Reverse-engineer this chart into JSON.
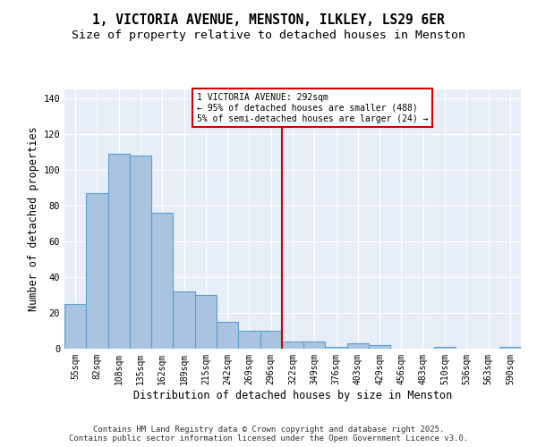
{
  "title": "1, VICTORIA AVENUE, MENSTON, ILKLEY, LS29 6ER",
  "subtitle": "Size of property relative to detached houses in Menston",
  "xlabel": "Distribution of detached houses by size in Menston",
  "ylabel": "Number of detached properties",
  "footer": "Contains HM Land Registry data © Crown copyright and database right 2025.\nContains public sector information licensed under the Open Government Licence v3.0.",
  "bin_labels": [
    "55sqm",
    "82sqm",
    "108sqm",
    "135sqm",
    "162sqm",
    "189sqm",
    "215sqm",
    "242sqm",
    "269sqm",
    "296sqm",
    "322sqm",
    "349sqm",
    "376sqm",
    "403sqm",
    "429sqm",
    "456sqm",
    "483sqm",
    "510sqm",
    "536sqm",
    "563sqm",
    "590sqm"
  ],
  "bar_values": [
    25,
    87,
    109,
    108,
    76,
    32,
    30,
    15,
    10,
    10,
    4,
    4,
    1,
    3,
    2,
    0,
    0,
    1,
    0,
    0,
    1
  ],
  "bar_color": "#aac4e0",
  "bar_edgecolor": "#5a9fd4",
  "vline_x": 9.5,
  "vline_color": "#cc0000",
  "annotation_text": "1 VICTORIA AVENUE: 292sqm\n← 95% of detached houses are smaller (488)\n5% of semi-detached houses are larger (24) →",
  "annotation_box_color": "#cc0000",
  "ylim": [
    0,
    145
  ],
  "yticks": [
    0,
    20,
    40,
    60,
    80,
    100,
    120,
    140
  ],
  "bg_color": "#e8eef7",
  "fig_bg_color": "#ffffff",
  "grid_color": "#ffffff",
  "title_fontsize": 10.5,
  "subtitle_fontsize": 9.5,
  "axis_fontsize": 8.5,
  "tick_fontsize": 7,
  "footer_fontsize": 6.5
}
